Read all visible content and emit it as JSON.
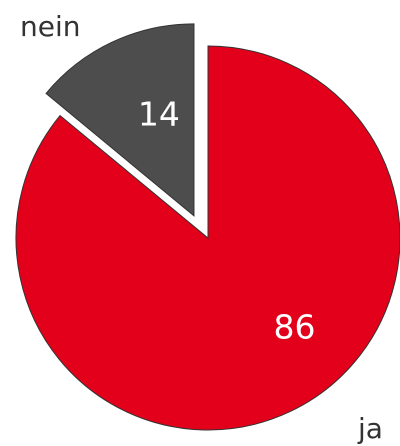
{
  "chart_data": {
    "type": "pie",
    "slices": [
      {
        "label": "ja",
        "value": 86,
        "color": "#e2001a"
      },
      {
        "label": "nein",
        "value": 14,
        "color": "#4d4d4d",
        "exploded": true
      }
    ],
    "show_data_labels": true,
    "edge_color": "#333333"
  }
}
